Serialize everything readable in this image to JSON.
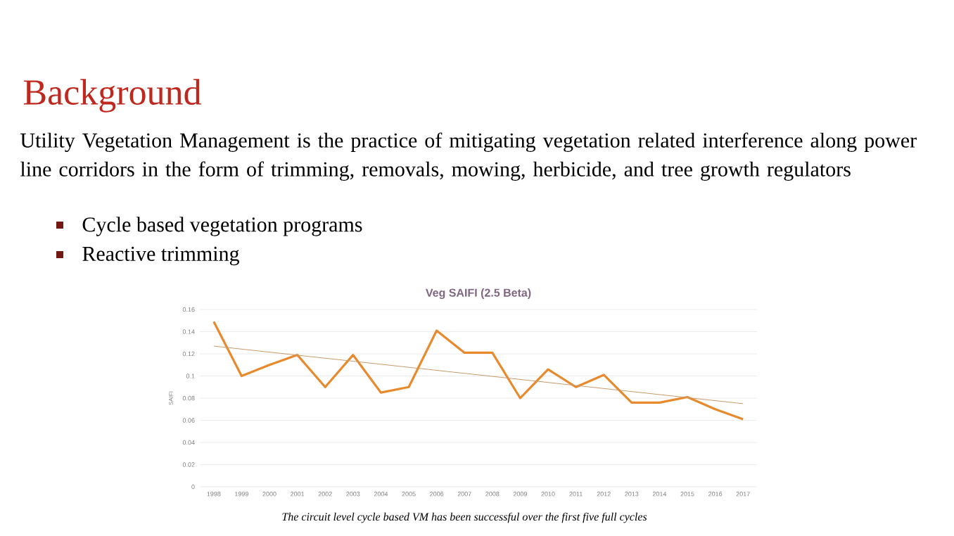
{
  "chart_data": {
    "type": "line",
    "title": "Veg SAIFI (2.5 Beta)",
    "ylabel": "SAIFI",
    "x": [
      1998,
      1999,
      2000,
      2001,
      2002,
      2003,
      2004,
      2005,
      2006,
      2007,
      2008,
      2009,
      2010,
      2011,
      2012,
      2013,
      2014,
      2015,
      2016,
      2017
    ],
    "series": [
      {
        "color": "#e8892b",
        "values": [
          0.149,
          0.1,
          0.11,
          0.119,
          0.09,
          0.119,
          0.085,
          0.09,
          0.141,
          0.121,
          0.121,
          0.08,
          0.106,
          0.09,
          0.101,
          0.076,
          0.076,
          0.081,
          0.07,
          0.061
        ]
      },
      {
        "type": "line",
        "color": "#c99a6a",
        "x": [
          1998,
          2017
        ],
        "values": [
          0.127,
          0.075
        ]
      }
    ],
    "xlim": [
      1997.5,
      2017.5
    ],
    "xticks": [
      1998,
      1999,
      2000,
      2001,
      2002,
      2003,
      2004,
      2005,
      2006,
      2007,
      2008,
      2009,
      2010,
      2011,
      2012,
      2013,
      2014,
      2015,
      2016,
      2017
    ],
    "ylim": [
      0,
      0.16
    ],
    "yticks": [
      0,
      0.02,
      0.04,
      0.06,
      0.08,
      0.1,
      0.12,
      0.14,
      0.16
    ],
    "grid": "y",
    "marker": "none",
    "line_style": "solid",
    "annotations": [
      "Background",
      "Utility Vegetation Management is the practice of mitigating vegetation related interference along power line corridors in the form of trimming, removals, mowing, herbicide, and tree growth regulators",
      "Cycle based vegetation programs",
      "Reactive trimming",
      "The circuit level cycle based VM has been successful over the first five full cycles"
    ]
  }
}
